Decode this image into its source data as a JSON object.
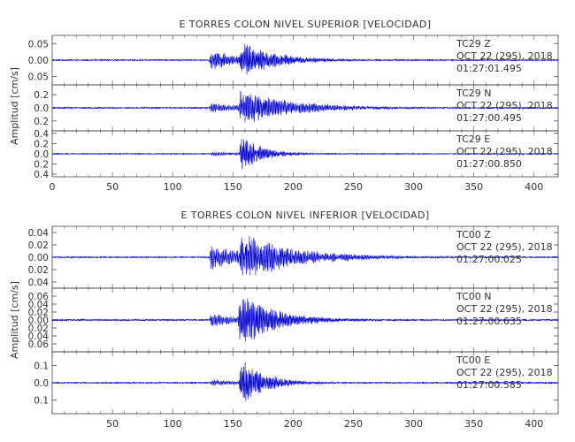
{
  "chart_data": [
    {
      "type": "line",
      "title": "E TORRES COLON NIVEL SUPERIOR [VELOCIDAD]",
      "ylabel": "Amplitud [cm/s]",
      "xlabel": "",
      "xlim": [
        0,
        420
      ],
      "xticks": [
        0,
        50,
        100,
        150,
        200,
        250,
        300,
        350,
        400
      ],
      "grid": false,
      "line_color": "#0000cc",
      "panels": [
        {
          "ylim": [
            -0.075,
            0.075
          ],
          "yticks": [
            -0.05,
            0,
            0.05
          ],
          "ytick_labels": [
            "0.05",
            "0.00",
            "0.05"
          ],
          "station": "TC29",
          "component": "Z",
          "date": "OCT 22 (295), 2018",
          "time": "01:27:01.495",
          "waveform": {
            "noise": 0.0015,
            "seed": 11,
            "bursts": [
              {
                "t0": 130,
                "amp": 0.035,
                "decay": 25,
                "period": 1.1
              },
              {
                "t0": 155,
                "amp": 0.055,
                "decay": 30,
                "period": 1.0
              }
            ]
          }
        },
        {
          "ylim": [
            -0.35,
            0.35
          ],
          "yticks": [
            -0.2,
            0,
            0.2
          ],
          "ytick_labels": [
            "0.2",
            "0.0",
            "0.2"
          ],
          "station": "TC29",
          "component": "N",
          "date": "OCT 22 (295), 2018",
          "time": "01:27:00.495",
          "waveform": {
            "noise": 0.008,
            "seed": 23,
            "bursts": [
              {
                "t0": 130,
                "amp": 0.08,
                "decay": 30,
                "period": 1.2
              },
              {
                "t0": 154,
                "amp": 0.28,
                "decay": 45,
                "period": 1.1
              }
            ]
          }
        },
        {
          "ylim": [
            -0.45,
            0.45
          ],
          "yticks": [
            -0.4,
            -0.2,
            0,
            0.2,
            0.4
          ],
          "ytick_labels": [
            "0.4",
            "0.2",
            "0.0",
            "0.2",
            "0.4"
          ],
          "station": "TC29",
          "component": "E",
          "date": "OCT 22 (295), 2018",
          "time": "01:27:00.850",
          "waveform": {
            "noise": 0.008,
            "seed": 37,
            "bursts": [
              {
                "t0": 131,
                "amp": 0.05,
                "decay": 25,
                "period": 1.2
              },
              {
                "t0": 155,
                "amp": 0.42,
                "decay": 18,
                "period": 1.0
              }
            ]
          }
        }
      ]
    },
    {
      "type": "line",
      "title": "E TORRES COLON NIVEL INFERIOR [VELOCIDAD]",
      "ylabel": "Amplitud [cm/s]",
      "xlabel": "",
      "xlim": [
        0,
        420
      ],
      "xticks": [
        0,
        50,
        100,
        150,
        200,
        250,
        300,
        350,
        400
      ],
      "xtick_labels": [
        "",
        "50",
        "100",
        "150",
        "200",
        "250",
        "300",
        "350",
        "400"
      ],
      "grid": false,
      "line_color": "#0000cc",
      "panels": [
        {
          "ylim": [
            -0.05,
            0.05
          ],
          "yticks": [
            -0.04,
            -0.02,
            0,
            0.02,
            0.04
          ],
          "ytick_labels": [
            "0.04",
            "0.02",
            "0.00",
            "0.02",
            "0.04"
          ],
          "station": "TC00",
          "component": "Z",
          "date": "OCT 22 (295), 2018",
          "time": "01:27:00.025",
          "waveform": {
            "noise": 0.0008,
            "seed": 51,
            "bursts": [
              {
                "t0": 130,
                "amp": 0.022,
                "decay": 35,
                "period": 1.2
              },
              {
                "t0": 155,
                "amp": 0.04,
                "decay": 45,
                "period": 1.1
              }
            ]
          }
        },
        {
          "ylim": [
            -0.08,
            0.08
          ],
          "yticks": [
            -0.06,
            -0.04,
            -0.02,
            0,
            0.02,
            0.04,
            0.06
          ],
          "ytick_labels": [
            "0.06",
            "0.04",
            "0.02",
            "0.00",
            "0.02",
            "0.04",
            "0.06"
          ],
          "station": "TC00",
          "component": "N",
          "date": "OCT 22 (295), 2018",
          "time": "01:27:00.635",
          "waveform": {
            "noise": 0.0015,
            "seed": 67,
            "bursts": [
              {
                "t0": 130,
                "amp": 0.02,
                "decay": 25,
                "period": 1.2
              },
              {
                "t0": 154,
                "amp": 0.075,
                "decay": 30,
                "period": 1.0
              }
            ]
          }
        },
        {
          "ylim": [
            -0.18,
            0.18
          ],
          "yticks": [
            -0.1,
            0,
            0.1
          ],
          "ytick_labels": [
            "0.1",
            "0.0",
            "0.1"
          ],
          "station": "TC00",
          "component": "E",
          "date": "OCT 22 (295), 2018",
          "time": "01:27:00.585",
          "waveform": {
            "noise": 0.003,
            "seed": 83,
            "bursts": [
              {
                "t0": 131,
                "amp": 0.02,
                "decay": 25,
                "period": 1.2
              },
              {
                "t0": 155,
                "amp": 0.16,
                "decay": 20,
                "period": 1.0
              }
            ]
          }
        }
      ]
    }
  ]
}
